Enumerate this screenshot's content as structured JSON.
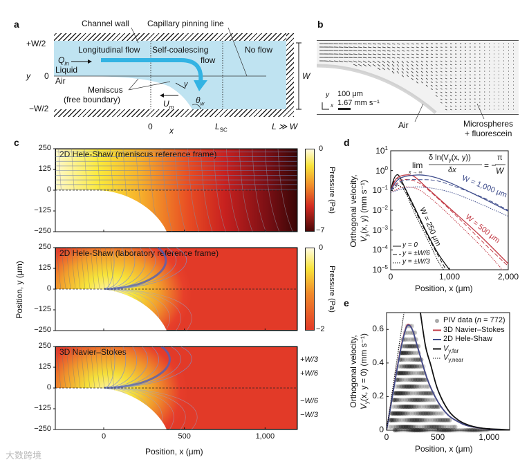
{
  "panel_labels": {
    "a": "a",
    "b": "b",
    "c": "c",
    "d": "d",
    "e": "e"
  },
  "colors": {
    "channel": "#bfe3f1",
    "arrow": "#33b3e3",
    "red": "#c23a45",
    "blue": "#3f4d8c"
  },
  "panel_a": {
    "channel_wall": "Channel wall",
    "pinning_line": "Capillary pinning line",
    "plus_w2": "+W/2",
    "zero_y": "0",
    "minus_w2": "−W/2",
    "y_axis": "y",
    "longitudinal": "Longitudinal flow",
    "self_coalescing_1": "Self-coalescing",
    "self_coalescing_2": "flow",
    "no_flow": "No flow",
    "q_in": "Q",
    "q_in_sub": "in",
    "liquid": "Liquid",
    "air": "Air",
    "meniscus_1": "Meniscus",
    "meniscus_2": "(free boundary)",
    "gamma": "γ",
    "u_m": "U",
    "u_m_sub": "m",
    "theta": "θ",
    "theta_sub": "w",
    "x_zero": "0",
    "x_axis": "x",
    "l_sc": "L",
    "l_sc_sub": "SC",
    "l_w": "L ≫ W",
    "w": "W"
  },
  "panel_b": {
    "scale_len": "100 μm",
    "scale_vel": "1.67 mm s⁻¹",
    "y": "y",
    "x": "x",
    "air": "Air",
    "micro_1": "Microspheres",
    "micro_2": "+ fluorescein"
  },
  "chart_data": [
    {
      "id": "c",
      "type": "heatmap",
      "xlabel": "Position, x (μm)",
      "ylabel": "Position, y (μm)",
      "xlim": [
        -300,
        1200
      ],
      "ylim": [
        -250,
        250
      ],
      "xticks": [
        "0",
        "500",
        "1,000"
      ],
      "xtick_values": [
        0,
        500,
        1000
      ],
      "yticks": [
        "250",
        "125",
        "0",
        "−125",
        "−250"
      ],
      "ytick_values": [
        250,
        125,
        0,
        -125,
        -250
      ],
      "colorbar_label": "Pressure (Pa)",
      "subplots": [
        {
          "title": "2D Hele-Shaw (meniscus reference frame)",
          "cmin": "−7",
          "cmax": "0"
        },
        {
          "title": "2D Hele-Shaw (laboratory reference frame)",
          "cmin": "−2",
          "cmax": "0"
        },
        {
          "title": "3D Navier–Stokes",
          "side_labels": [
            "+W/3",
            "+W/6",
            "−W/6",
            "−W/3"
          ],
          "side_values": [
            166.7,
            83.3,
            -83.3,
            -166.7
          ]
        }
      ]
    },
    {
      "id": "d",
      "type": "line",
      "yscale": "log",
      "xlabel": "Position, x (μm)",
      "ylabel_1": "Orthogonal velocity,",
      "ylabel_2": "V",
      "ylabel_2_sub": "y",
      "ylabel_2_rest": "(x, y) (mm s⁻¹)",
      "xlim": [
        0,
        2000
      ],
      "ylim": [
        1e-05,
        10
      ],
      "xticks": [
        "0",
        "1,000",
        "2,000"
      ],
      "xtick_values": [
        0,
        1000,
        2000
      ],
      "yticks": [
        {
          "base": "10",
          "exp": "1"
        },
        {
          "base": "10",
          "exp": "0"
        },
        {
          "base": "10",
          "exp": "−1"
        },
        {
          "base": "10",
          "exp": "−2"
        },
        {
          "base": "10",
          "exp": "−3"
        },
        {
          "base": "10",
          "exp": "−4"
        },
        {
          "base": "10",
          "exp": "−5"
        }
      ],
      "ytick_values": [
        1,
        0,
        -1,
        -2,
        -3,
        -4,
        -5
      ],
      "equation": {
        "lim": "lim",
        "sub": "x → ∞",
        "num": "δ ln(V",
        "num_sub": "y",
        "num_rest": "(x, y))",
        "den": "δx",
        "rhs": "= −",
        "pi": "π",
        "W": "W"
      },
      "legend": [
        "y = 0",
        "y = ±W/6",
        "y = ±W/3"
      ],
      "labels": {
        "w1000": "W = 1,000 μm",
        "w500": "W = 500 μm",
        "w250": "W = 250 μm"
      },
      "series": [
        {
          "name": "W=250 y=0",
          "W": 250,
          "style": "solid",
          "color": "#111111",
          "points": [
            [
              0,
              0.1
            ],
            [
              50,
              0.35
            ],
            [
              100,
              0.6
            ],
            [
              150,
              0.5
            ],
            [
              250,
              0.12
            ],
            [
              400,
              0.015
            ],
            [
              600,
              0.0009
            ],
            [
              800,
              7e-05
            ],
            [
              1000,
              1e-05
            ]
          ]
        },
        {
          "name": "W=250 y=±W/6",
          "W": 250,
          "style": "dashed",
          "color": "#111111",
          "points": [
            [
              0,
              0.1
            ],
            [
              60,
              0.3
            ],
            [
              120,
              0.4
            ],
            [
              200,
              0.2
            ],
            [
              300,
              0.05
            ],
            [
              500,
              0.003
            ],
            [
              700,
              0.0002
            ],
            [
              940,
              1e-05
            ]
          ]
        },
        {
          "name": "W=250 y=±W/3",
          "W": 250,
          "style": "dotted",
          "color": "#111111",
          "points": [
            [
              0,
              0.08
            ],
            [
              80,
              0.15
            ],
            [
              150,
              0.17
            ],
            [
              250,
              0.08
            ],
            [
              400,
              0.008
            ],
            [
              600,
              0.0005
            ],
            [
              800,
              3e-05
            ],
            [
              900,
              1e-05
            ]
          ]
        },
        {
          "name": "W=500 y=0",
          "W": 500,
          "style": "solid",
          "color": "#c23a45",
          "points": [
            [
              0,
              0.1
            ],
            [
              100,
              0.4
            ],
            [
              250,
              0.6
            ],
            [
              400,
              0.5
            ],
            [
              600,
              0.15
            ],
            [
              1000,
              0.013
            ],
            [
              1500,
              0.0006
            ],
            [
              2000,
              2e-05
            ]
          ]
        },
        {
          "name": "W=500 y=±W/6",
          "W": 500,
          "style": "dashed",
          "color": "#c23a45",
          "points": [
            [
              0,
              0.1
            ],
            [
              150,
              0.3
            ],
            [
              300,
              0.35
            ],
            [
              500,
              0.22
            ],
            [
              800,
              0.04
            ],
            [
              1200,
              0.003
            ],
            [
              1600,
              0.0002
            ],
            [
              2000,
              1.5e-05
            ]
          ]
        },
        {
          "name": "W=500 y=±W/3",
          "W": 500,
          "style": "dotted",
          "color": "#c23a45",
          "points": [
            [
              0,
              0.08
            ],
            [
              150,
              0.13
            ],
            [
              300,
              0.15
            ],
            [
              500,
              0.1
            ],
            [
              800,
              0.02
            ],
            [
              1200,
              0.0015
            ],
            [
              1600,
              0.0001
            ],
            [
              1900,
              1e-05
            ]
          ]
        },
        {
          "name": "W=1000 y=0",
          "W": 1000,
          "style": "solid",
          "color": "#3f4d8c",
          "points": [
            [
              0,
              0.1
            ],
            [
              150,
              0.4
            ],
            [
              450,
              0.6
            ],
            [
              700,
              0.5
            ],
            [
              1000,
              0.25
            ],
            [
              1500,
              0.05
            ],
            [
              2000,
              0.009
            ]
          ]
        },
        {
          "name": "W=1000 y=±W/6",
          "W": 1000,
          "style": "dashed",
          "color": "#3f4d8c",
          "points": [
            [
              0,
              0.1
            ],
            [
              200,
              0.3
            ],
            [
              500,
              0.35
            ],
            [
              800,
              0.3
            ],
            [
              1200,
              0.12
            ],
            [
              1600,
              0.04
            ],
            [
              2000,
              0.01
            ]
          ]
        },
        {
          "name": "W=1000 y=±W/3",
          "W": 1000,
          "style": "dotted",
          "color": "#3f4d8c",
          "points": [
            [
              0,
              0.08
            ],
            [
              250,
              0.13
            ],
            [
              500,
              0.15
            ],
            [
              900,
              0.1
            ],
            [
              1300,
              0.04
            ],
            [
              2000,
              0.005
            ]
          ]
        }
      ]
    },
    {
      "id": "e",
      "type": "scatter",
      "xlabel": "Position, x (μm)",
      "ylabel_1": "Orthogonal velocity,",
      "ylabel_2": "V",
      "ylabel_2_sub": "y",
      "ylabel_2_rest": "(x, y = 0) (mm s⁻¹)",
      "xlim": [
        0,
        1200
      ],
      "ylim": [
        0,
        0.7
      ],
      "xticks": [
        "0",
        "500",
        "1,000"
      ],
      "xtick_values": [
        0,
        500,
        1000
      ],
      "yticks": [
        "0",
        "0.2",
        "0.4",
        "0.6"
      ],
      "ytick_values": [
        0,
        0.2,
        0.4,
        0.6
      ],
      "legend": [
        {
          "label": "PIV data (",
          "italic": "n",
          "rest": " = 772)",
          "kind": "dot",
          "color": "#aaaaaa"
        },
        {
          "label": "3D Navier–Stokes",
          "kind": "line",
          "color": "#c23a45"
        },
        {
          "label": "2D Hele-Shaw",
          "kind": "line",
          "color": "#3f4d8c"
        },
        {
          "label": "V",
          "sub": "y,far",
          "kind": "line",
          "color": "#111111"
        },
        {
          "label": "V",
          "sub": "y,near",
          "kind": "dotted",
          "color": "#111111"
        }
      ],
      "piv_rows": [
        [
          0.62,
          200,
          260
        ],
        [
          0.58,
          180,
          280
        ],
        [
          0.54,
          160,
          300
        ],
        [
          0.5,
          150,
          310
        ],
        [
          0.46,
          140,
          330
        ],
        [
          0.42,
          130,
          350
        ],
        [
          0.38,
          120,
          370
        ],
        [
          0.34,
          110,
          380
        ],
        [
          0.3,
          100,
          400
        ],
        [
          0.26,
          90,
          420
        ],
        [
          0.22,
          80,
          450
        ],
        [
          0.18,
          70,
          480
        ],
        [
          0.14,
          60,
          520
        ],
        [
          0.1,
          50,
          560
        ],
        [
          0.06,
          40,
          620
        ],
        [
          0.02,
          30,
          680
        ],
        [
          0.0,
          80,
          1000
        ]
      ],
      "series": [
        {
          "name": "3D Navier–Stokes",
          "color": "#c23a45",
          "points": [
            [
              0,
              0
            ],
            [
              50,
              0.18
            ],
            [
              100,
              0.36
            ],
            [
              150,
              0.52
            ],
            [
              200,
              0.625
            ],
            [
              250,
              0.6
            ],
            [
              300,
              0.5
            ],
            [
              400,
              0.3
            ],
            [
              500,
              0.17
            ],
            [
              600,
              0.09
            ],
            [
              700,
              0.05
            ],
            [
              800,
              0.025
            ],
            [
              1000,
              0.006
            ],
            [
              1200,
              0.002
            ]
          ]
        },
        {
          "name": "2D Hele-Shaw",
          "color": "#3f4d8c",
          "points": [
            [
              0,
              0
            ],
            [
              50,
              0.175
            ],
            [
              100,
              0.355
            ],
            [
              150,
              0.515
            ],
            [
              200,
              0.62
            ],
            [
              250,
              0.6
            ],
            [
              300,
              0.5
            ],
            [
              400,
              0.3
            ],
            [
              500,
              0.17
            ],
            [
              600,
              0.09
            ],
            [
              700,
              0.05
            ],
            [
              800,
              0.025
            ],
            [
              1000,
              0.006
            ],
            [
              1200,
              0.002
            ]
          ]
        },
        {
          "name": "V_y,far",
          "color": "#111111",
          "points": [
            [
              330,
              0.7
            ],
            [
              380,
              0.5
            ],
            [
              430,
              0.39
            ],
            [
              500,
              0.24
            ],
            [
              600,
              0.12
            ],
            [
              700,
              0.06
            ],
            [
              800,
              0.03
            ],
            [
              900,
              0.015
            ],
            [
              1000,
              0.008
            ],
            [
              1200,
              0.002
            ]
          ]
        },
        {
          "name": "V_y,near",
          "color": "#111111",
          "style": "dotted",
          "points": [
            [
              0,
              0
            ],
            [
              170,
              0.7
            ]
          ]
        }
      ]
    }
  ],
  "watermark": "大数跨境"
}
